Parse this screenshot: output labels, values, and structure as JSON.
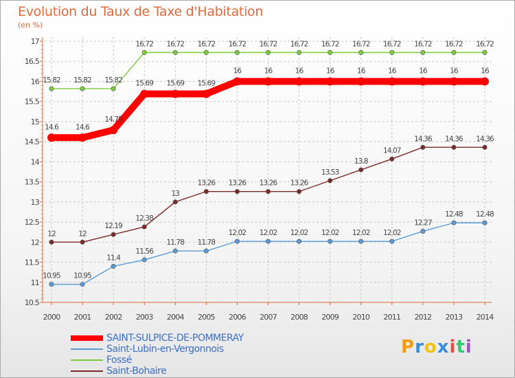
{
  "title": "Evolution du Taux de Taxe d'Habitation",
  "subtitle": "(en %)",
  "chart_data": {
    "type": "line",
    "title": "Evolution du Taux de Taxe d'Habitation",
    "ylabel": "(en %)",
    "ylim": [
      10.5,
      17
    ],
    "yticks": [
      "10.5",
      "11",
      "11.5",
      "12",
      "12.5",
      "13",
      "13.5",
      "14",
      "14.5",
      "15",
      "15.5",
      "16",
      "16.5",
      "17"
    ],
    "x": [
      "2000",
      "2001",
      "2002",
      "2003",
      "2004",
      "2005",
      "2006",
      "2007",
      "2008",
      "2009",
      "2010",
      "2011",
      "2012",
      "2013",
      "2014"
    ],
    "grid": true,
    "legend": "bottom-left",
    "series": [
      {
        "name": "SAINT-SULPICE-DE-POMMERAY",
        "color": "#ff0000",
        "values": [
          14.6,
          14.6,
          14.79,
          15.69,
          15.69,
          15.69,
          16,
          16,
          16,
          16,
          16,
          16,
          16,
          16,
          16
        ],
        "labels": [
          "14.6",
          "14.6",
          "14.79",
          "15.69",
          "15.69",
          "15.69",
          "16",
          "16",
          "16",
          "16",
          "16",
          "16",
          "16",
          "16",
          "16"
        ]
      },
      {
        "name": "Saint-Lubin-en-Vergonnois",
        "color": "#5b9bd5",
        "values": [
          10.95,
          10.95,
          11.4,
          11.56,
          11.78,
          11.78,
          12.02,
          12.02,
          12.02,
          12.02,
          12.02,
          12.02,
          12.27,
          12.48,
          12.48
        ],
        "labels": [
          "10.95",
          "10.95",
          "11.4",
          "11.56",
          "11.78",
          "11.78",
          "12.02",
          "12.02",
          "12.02",
          "12.02",
          "12.02",
          "12.02",
          "12.27",
          "12.48",
          "12.48"
        ]
      },
      {
        "name": "Fossé",
        "color": "#7ccc3c",
        "values": [
          15.82,
          15.82,
          15.82,
          16.72,
          16.72,
          16.72,
          16.72,
          16.72,
          16.72,
          16.72,
          16.72,
          16.72,
          16.72,
          16.72,
          16.72
        ],
        "labels": [
          "15.82",
          "15.82",
          "15.82",
          "16.72",
          "16.72",
          "16.72",
          "16.72",
          "16.72",
          "16.72",
          "16.72",
          "16.72",
          "16.72",
          "16.72",
          "16.72",
          "16.72"
        ]
      },
      {
        "name": "Saint-Bohaire",
        "color": "#7b2a2a",
        "values": [
          12,
          12,
          12.19,
          12.38,
          13,
          13.26,
          13.26,
          13.26,
          13.26,
          13.53,
          13.8,
          14.07,
          14.36,
          14.36,
          14.36
        ],
        "labels": [
          "12",
          "12",
          "12.19",
          "12.38",
          "13",
          "13.26",
          "13.26",
          "13.26",
          "13.26",
          "13.53",
          "13.8",
          "14.07",
          "14.36",
          "14.36",
          "14.36"
        ]
      }
    ]
  },
  "logo": {
    "letters": [
      "P",
      "r",
      "o",
      "x",
      "i",
      "t",
      "i"
    ],
    "colors": [
      "#f39c12",
      "#3c8dd8",
      "#f1c40f",
      "#3c8dd8",
      "#e74c3c",
      "#2ecc71",
      "#9b59b6"
    ]
  }
}
